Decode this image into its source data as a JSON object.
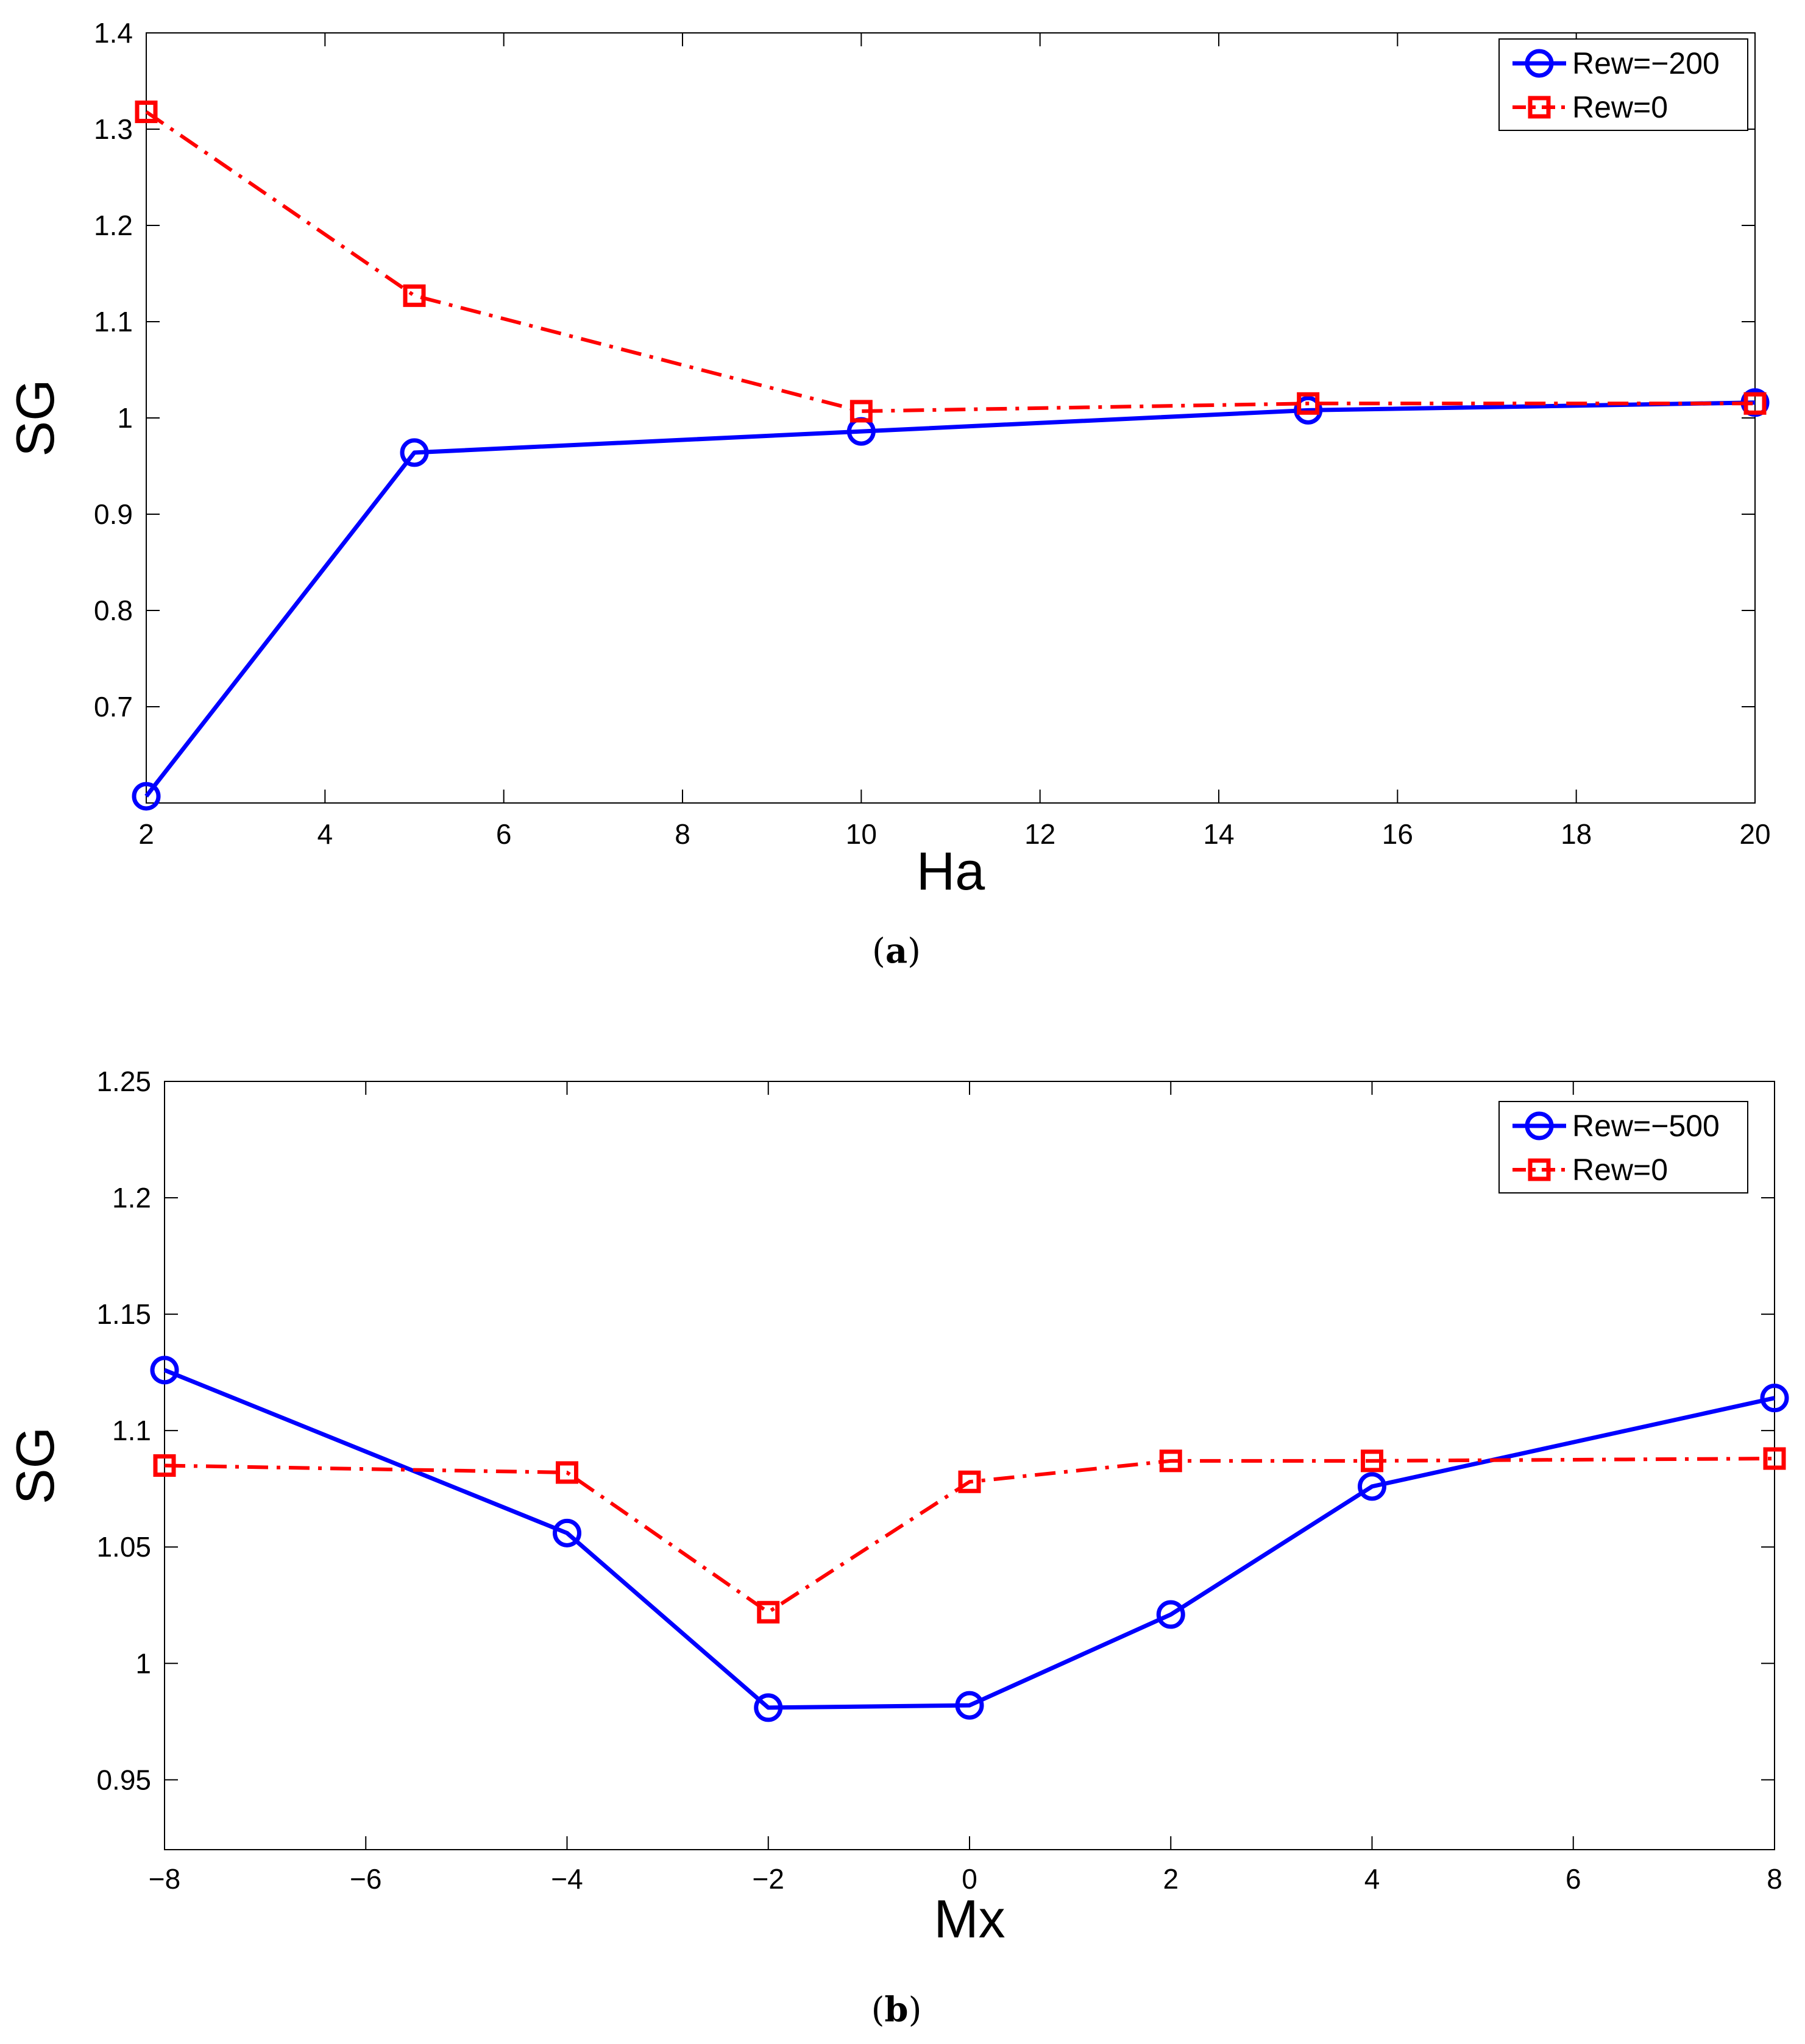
{
  "chart_data": [
    {
      "type": "line",
      "caption_letter": "a",
      "xlabel": "Ha",
      "ylabel": "SG",
      "xlim": [
        2,
        20
      ],
      "ylim": [
        0.6,
        1.4
      ],
      "xticks": [
        2,
        4,
        6,
        8,
        10,
        12,
        14,
        16,
        18,
        20
      ],
      "yticks": [
        0.7,
        0.8,
        0.9,
        1,
        1.1,
        1.2,
        1.3,
        1.4
      ],
      "legend_position": "top-right",
      "series": [
        {
          "name": "Rew=−200",
          "color": "#0000ff",
          "line_style": "solid",
          "marker": "circle",
          "x": [
            2,
            5,
            10,
            15,
            20
          ],
          "y": [
            0.607,
            0.964,
            0.986,
            1.008,
            1.016
          ]
        },
        {
          "name": "Rew=0",
          "color": "#ff0000",
          "line_style": "dash-dot",
          "marker": "square",
          "x": [
            2,
            5,
            10,
            15,
            20
          ],
          "y": [
            1.318,
            1.127,
            1.007,
            1.015,
            1.015
          ]
        }
      ]
    },
    {
      "type": "line",
      "caption_letter": "b",
      "xlabel": "Mx",
      "ylabel": "SG",
      "xlim": [
        -8,
        8
      ],
      "ylim": [
        0.92,
        1.25
      ],
      "xticks": [
        -8,
        -6,
        -4,
        -2,
        0,
        2,
        4,
        6,
        8
      ],
      "xtick_labels": [
        "−8",
        "−6",
        "−4",
        "−2",
        "0",
        "2",
        "4",
        "6",
        "8"
      ],
      "yticks": [
        0.95,
        1,
        1.05,
        1.1,
        1.15,
        1.2,
        1.25
      ],
      "legend_position": "top-right",
      "series": [
        {
          "name": "Rew=−500",
          "color": "#0000ff",
          "line_style": "solid",
          "marker": "circle",
          "x": [
            -8,
            -4,
            -2,
            0,
            2,
            4,
            8
          ],
          "y": [
            1.126,
            1.056,
            0.981,
            0.982,
            1.021,
            1.076,
            1.114
          ]
        },
        {
          "name": "Rew=0",
          "color": "#ff0000",
          "line_style": "dash-dot",
          "marker": "square",
          "x": [
            -8,
            -4,
            -2,
            0,
            2,
            4,
            8
          ],
          "y": [
            1.085,
            1.082,
            1.022,
            1.078,
            1.087,
            1.087,
            1.088
          ]
        }
      ]
    }
  ]
}
